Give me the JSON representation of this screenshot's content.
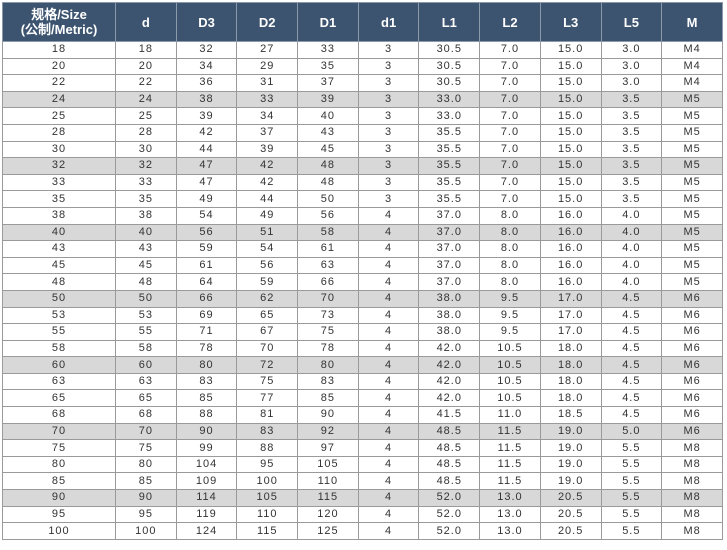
{
  "table": {
    "header": [
      "规格/Size",
      "(公制/Metric)"
    ],
    "columns": [
      "d",
      "D3",
      "D2",
      "D1",
      "d1",
      "L1",
      "L2",
      "L3",
      "L5",
      "M"
    ],
    "rows": [
      [
        "18",
        "18",
        "32",
        "27",
        "33",
        "3",
        "30.5",
        "7.0",
        "15.0",
        "3.0",
        "M4"
      ],
      [
        "20",
        "20",
        "34",
        "29",
        "35",
        "3",
        "30.5",
        "7.0",
        "15.0",
        "3.0",
        "M4"
      ],
      [
        "22",
        "22",
        "36",
        "31",
        "37",
        "3",
        "30.5",
        "7.0",
        "15.0",
        "3.0",
        "M4"
      ],
      [
        "24",
        "24",
        "38",
        "33",
        "39",
        "3",
        "33.0",
        "7.0",
        "15.0",
        "3.5",
        "M5"
      ],
      [
        "25",
        "25",
        "39",
        "34",
        "40",
        "3",
        "33.0",
        "7.0",
        "15.0",
        "3.5",
        "M5"
      ],
      [
        "28",
        "28",
        "42",
        "37",
        "43",
        "3",
        "35.5",
        "7.0",
        "15.0",
        "3.5",
        "M5"
      ],
      [
        "30",
        "30",
        "44",
        "39",
        "45",
        "3",
        "35.5",
        "7.0",
        "15.0",
        "3.5",
        "M5"
      ],
      [
        "32",
        "32",
        "47",
        "42",
        "48",
        "3",
        "35.5",
        "7.0",
        "15.0",
        "3.5",
        "M5"
      ],
      [
        "33",
        "33",
        "47",
        "42",
        "48",
        "3",
        "35.5",
        "7.0",
        "15.0",
        "3.5",
        "M5"
      ],
      [
        "35",
        "35",
        "49",
        "44",
        "50",
        "3",
        "35.5",
        "7.0",
        "15.0",
        "3.5",
        "M5"
      ],
      [
        "38",
        "38",
        "54",
        "49",
        "56",
        "4",
        "37.0",
        "8.0",
        "16.0",
        "4.0",
        "M5"
      ],
      [
        "40",
        "40",
        "56",
        "51",
        "58",
        "4",
        "37.0",
        "8.0",
        "16.0",
        "4.0",
        "M5"
      ],
      [
        "43",
        "43",
        "59",
        "54",
        "61",
        "4",
        "37.0",
        "8.0",
        "16.0",
        "4.0",
        "M5"
      ],
      [
        "45",
        "45",
        "61",
        "56",
        "63",
        "4",
        "37.0",
        "8.0",
        "16.0",
        "4.0",
        "M5"
      ],
      [
        "48",
        "48",
        "64",
        "59",
        "66",
        "4",
        "37.0",
        "8.0",
        "16.0",
        "4.0",
        "M5"
      ],
      [
        "50",
        "50",
        "66",
        "62",
        "70",
        "4",
        "38.0",
        "9.5",
        "17.0",
        "4.5",
        "M6"
      ],
      [
        "53",
        "53",
        "69",
        "65",
        "73",
        "4",
        "38.0",
        "9.5",
        "17.0",
        "4.5",
        "M6"
      ],
      [
        "55",
        "55",
        "71",
        "67",
        "75",
        "4",
        "38.0",
        "9.5",
        "17.0",
        "4.5",
        "M6"
      ],
      [
        "58",
        "58",
        "78",
        "70",
        "78",
        "4",
        "42.0",
        "10.5",
        "18.0",
        "4.5",
        "M6"
      ],
      [
        "60",
        "60",
        "80",
        "72",
        "80",
        "4",
        "42.0",
        "10.5",
        "18.0",
        "4.5",
        "M6"
      ],
      [
        "63",
        "63",
        "83",
        "75",
        "83",
        "4",
        "42.0",
        "10.5",
        "18.0",
        "4.5",
        "M6"
      ],
      [
        "65",
        "65",
        "85",
        "77",
        "85",
        "4",
        "42.0",
        "10.5",
        "18.0",
        "4.5",
        "M6"
      ],
      [
        "68",
        "68",
        "88",
        "81",
        "90",
        "4",
        "41.5",
        "11.0",
        "18.5",
        "4.5",
        "M6"
      ],
      [
        "70",
        "70",
        "90",
        "83",
        "92",
        "4",
        "48.5",
        "11.5",
        "19.0",
        "5.0",
        "M6"
      ],
      [
        "75",
        "75",
        "99",
        "88",
        "97",
        "4",
        "48.5",
        "11.5",
        "19.0",
        "5.5",
        "M8"
      ],
      [
        "80",
        "80",
        "104",
        "95",
        "105",
        "4",
        "48.5",
        "11.5",
        "19.0",
        "5.5",
        "M8"
      ],
      [
        "85",
        "85",
        "109",
        "100",
        "110",
        "4",
        "48.5",
        "11.5",
        "19.0",
        "5.5",
        "M8"
      ],
      [
        "90",
        "90",
        "114",
        "105",
        "115",
        "4",
        "52.0",
        "13.0",
        "20.5",
        "5.5",
        "M8"
      ],
      [
        "95",
        "95",
        "119",
        "110",
        "120",
        "4",
        "52.0",
        "13.0",
        "20.5",
        "5.5",
        "M8"
      ],
      [
        "100",
        "100",
        "124",
        "115",
        "125",
        "4",
        "52.0",
        "13.0",
        "20.5",
        "5.5",
        "M8"
      ]
    ]
  }
}
